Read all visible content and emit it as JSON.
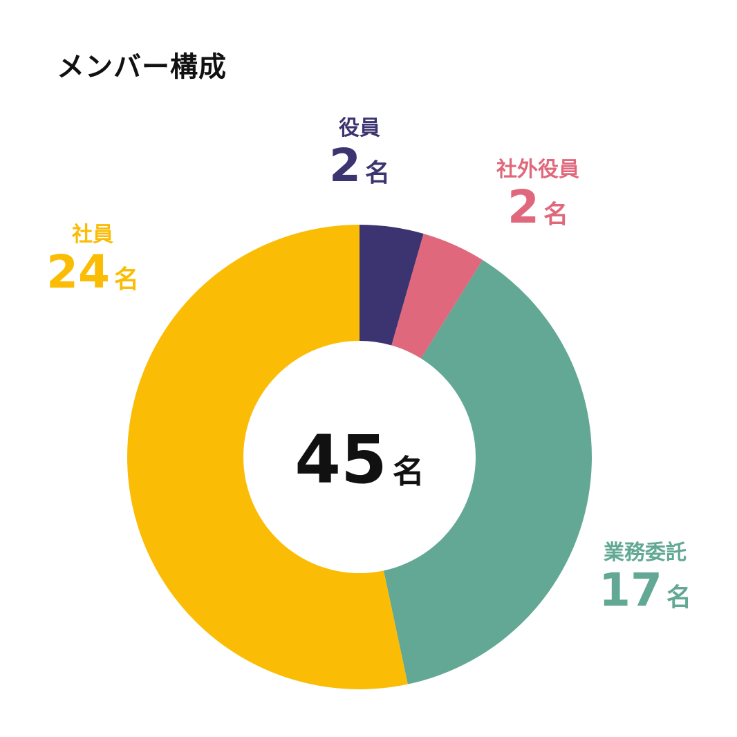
{
  "title": "メンバー構成",
  "chart_data": {
    "type": "pie",
    "title": "メンバー構成",
    "unit": "名",
    "total": 45,
    "slices": [
      {
        "name": "役員",
        "value": 2,
        "color": "#3c3470"
      },
      {
        "name": "社外役員",
        "value": 2,
        "color": "#e0687c"
      },
      {
        "name": "業務委託",
        "value": 17,
        "color": "#62a894"
      },
      {
        "name": "社員",
        "value": 24,
        "color": "#fbbc06"
      }
    ]
  }
}
